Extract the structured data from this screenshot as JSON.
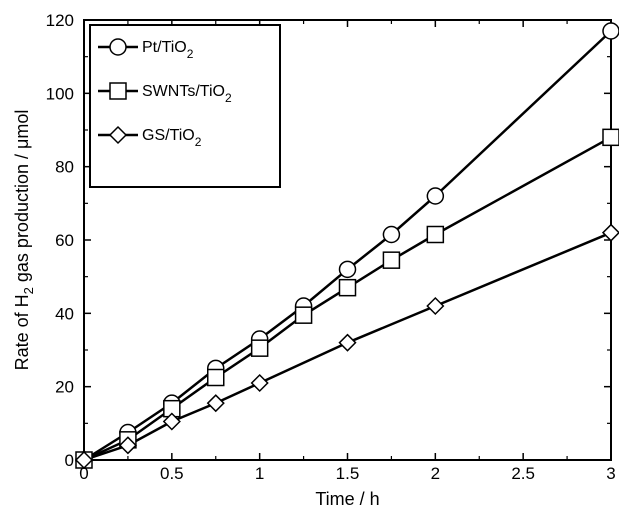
{
  "chart_data": {
    "type": "line",
    "xlabel": "Time / h",
    "ylabel": {
      "prefix": "Rate of H",
      "subscript": "2",
      "suffix": " gas production / μmol"
    },
    "xlim": [
      0,
      3
    ],
    "ylim": [
      0,
      120
    ],
    "x_ticks": [
      "0",
      "0.5",
      "1",
      "1.5",
      "2",
      "2.5",
      "3"
    ],
    "y_ticks": [
      "0",
      "20",
      "40",
      "60",
      "80",
      "100",
      "120"
    ],
    "grid": false,
    "legend_position": "top-left",
    "series": [
      {
        "name": "Pt/TiO2",
        "name_main": "Pt/TiO",
        "name_sub": "2",
        "marker": "circle",
        "x": [
          0,
          0.25,
          0.5,
          0.75,
          1,
          1.25,
          1.5,
          1.75,
          2,
          3
        ],
        "y": [
          0,
          7.5,
          15.5,
          25,
          33,
          42,
          52,
          61.5,
          72,
          117
        ]
      },
      {
        "name": "SWNTs/TiO2",
        "name_main": "SWNTs/TiO",
        "name_sub": "2",
        "marker": "square",
        "x": [
          0,
          0.25,
          0.5,
          0.75,
          1,
          1.25,
          1.5,
          1.75,
          2,
          3
        ],
        "y": [
          0,
          5.5,
          14,
          22.5,
          30.5,
          39.5,
          47,
          54.5,
          61.5,
          88
        ]
      },
      {
        "name": "GS/TiO2",
        "name_main": "GS/TiO",
        "name_sub": "2",
        "marker": "diamond",
        "x": [
          0,
          0.25,
          0.5,
          0.75,
          1,
          1.5,
          2,
          3
        ],
        "y": [
          0,
          4,
          10.5,
          15.5,
          21,
          32,
          42,
          62
        ]
      }
    ]
  }
}
